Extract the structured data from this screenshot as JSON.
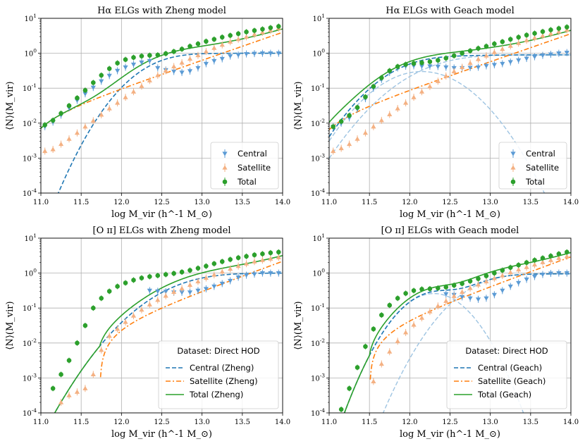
{
  "chart_data": [
    {
      "type": "line",
      "title": "Hα ELGs with Zheng model",
      "xlabel": "log M_vir (h^-1 M_⊙)",
      "ylabel": "⟨N⟩(M_vir)",
      "xlim": [
        11.0,
        14.0
      ],
      "ylim_log10": [
        -4,
        1
      ],
      "xticks": [
        "11.0",
        "11.5",
        "12.0",
        "12.5",
        "13.0",
        "13.5",
        "14.0"
      ],
      "yticks": [
        "10^-4",
        "10^-3",
        "10^-2",
        "10^-1",
        "10^0",
        "10^1"
      ],
      "grid": true,
      "legend_loc": "lower right",
      "legend_title": "",
      "legend": [
        {
          "label": "Central",
          "marker": "tri-down",
          "color": "#5b9bd5"
        },
        {
          "label": "Satellite",
          "marker": "tri-up",
          "color": "#f4b183"
        },
        {
          "label": "Total",
          "marker": "circle",
          "color": "#2ca02c"
        }
      ],
      "model": {
        "central": {
          "kind": "zheng",
          "logMmin": 12.4,
          "sigma": 0.45,
          "amp": 1.0
        },
        "satellite": {
          "M0": 10.8,
          "M1": 13.25,
          "alpha": 0.8
        },
        "curves": [
          "central-dashed",
          "satellite-dashdot",
          "total-solid"
        ]
      },
      "series": [
        {
          "name": "Central",
          "x": [
            11.05,
            11.15,
            11.25,
            11.35,
            11.45,
            11.55,
            11.65,
            11.75,
            11.85,
            11.95,
            12.05,
            12.15,
            12.25,
            12.35,
            12.45,
            12.55,
            12.65,
            12.75,
            12.85,
            12.95,
            13.05,
            13.15,
            13.25,
            13.35,
            13.45,
            13.55,
            13.65,
            13.75,
            13.85,
            13.95
          ],
          "log10y": [
            -2.1,
            -1.97,
            -1.77,
            -1.56,
            -1.35,
            -1.16,
            -0.98,
            -0.8,
            -0.64,
            -0.5,
            -0.4,
            -0.32,
            -0.26,
            -0.22,
            -0.42,
            -0.48,
            -0.52,
            -0.55,
            -0.51,
            -0.42,
            -0.3,
            -0.22,
            -0.16,
            -0.08,
            -0.05,
            -0.02,
            -0.01,
            0.0,
            0.0,
            0.0
          ]
        },
        {
          "name": "Satellite",
          "x": [
            11.05,
            11.15,
            11.25,
            11.35,
            11.45,
            11.55,
            11.65,
            11.75,
            11.85,
            11.95,
            12.05,
            12.15,
            12.25,
            12.35,
            12.45,
            12.55,
            12.65,
            12.75,
            12.85,
            12.95,
            13.05,
            13.15,
            13.25,
            13.35,
            13.45,
            13.55,
            13.65,
            13.75,
            13.85,
            13.95
          ],
          "log10y": [
            -2.8,
            -2.75,
            -2.6,
            -2.45,
            -2.28,
            -2.1,
            -1.93,
            -1.76,
            -1.58,
            -1.42,
            -1.26,
            -1.1,
            -0.94,
            -0.78,
            -0.63,
            -0.5,
            -0.38,
            -0.27,
            -0.16,
            -0.06,
            0.05,
            0.15,
            0.24,
            0.33,
            0.4,
            0.47,
            0.54,
            0.6,
            0.66,
            0.72
          ]
        },
        {
          "name": "Total",
          "x": [
            11.05,
            11.15,
            11.25,
            11.35,
            11.45,
            11.55,
            11.65,
            11.75,
            11.85,
            11.95,
            12.05,
            12.15,
            12.25,
            12.35,
            12.45,
            12.55,
            12.65,
            12.75,
            12.85,
            12.95,
            13.05,
            13.15,
            13.25,
            13.35,
            13.45,
            13.55,
            13.65,
            13.75,
            13.85,
            13.95
          ],
          "log10y": [
            -2.05,
            -1.92,
            -1.72,
            -1.5,
            -1.28,
            -1.06,
            -0.84,
            -0.63,
            -0.44,
            -0.28,
            -0.18,
            -0.12,
            -0.08,
            -0.06,
            -0.05,
            -0.01,
            0.05,
            0.12,
            0.2,
            0.27,
            0.34,
            0.4,
            0.46,
            0.51,
            0.56,
            0.61,
            0.65,
            0.69,
            0.73,
            0.77
          ]
        }
      ]
    },
    {
      "type": "line",
      "title": "Hα ELGs with Geach model",
      "xlabel": "log M_vir (h^-1 M_⊙)",
      "ylabel": "⟨N⟩(M_vir)",
      "xlim": [
        11.0,
        14.0
      ],
      "ylim_log10": [
        -4,
        1
      ],
      "xticks": [
        "11.0",
        "11.5",
        "12.0",
        "12.5",
        "13.0",
        "13.5",
        "14.0"
      ],
      "yticks": [
        "10^-4",
        "10^-3",
        "10^-2",
        "10^-1",
        "10^0",
        "10^1"
      ],
      "grid": true,
      "legend_loc": "lower right",
      "legend_title": "",
      "legend": [
        {
          "label": "Central",
          "marker": "tri-down",
          "color": "#5b9bd5"
        },
        {
          "label": "Satellite",
          "marker": "tri-up",
          "color": "#f4b183"
        },
        {
          "label": "Total",
          "marker": "circle",
          "color": "#2ca02c"
        }
      ],
      "model": {
        "central": {
          "kind": "geach",
          "gauss_mu": 12.15,
          "gauss_sigma": 0.38,
          "gauss_amp": 0.3,
          "step_logM": 12.3,
          "step_sigma": 0.6,
          "step_amp": 0.9
        },
        "satellite": {
          "M0": 10.8,
          "M1": 13.3,
          "alpha": 0.8
        },
        "curves": [
          "central-dashed",
          "satellite-dashdot",
          "total-solid",
          "central-gaussian-light",
          "central-step-light"
        ]
      },
      "series": [
        {
          "name": "Central",
          "x": [
            11.05,
            11.15,
            11.25,
            11.35,
            11.45,
            11.55,
            11.65,
            11.75,
            11.85,
            11.95,
            12.05,
            12.15,
            12.25,
            12.35,
            12.45,
            12.55,
            12.65,
            12.75,
            12.85,
            12.95,
            13.05,
            13.15,
            13.25,
            13.35,
            13.45,
            13.55,
            13.65,
            13.75,
            13.85,
            13.95
          ],
          "log10y": [
            -2.1,
            -2.0,
            -1.85,
            -1.6,
            -1.3,
            -1.0,
            -0.75,
            -0.55,
            -0.42,
            -0.37,
            -0.36,
            -0.37,
            -0.37,
            -0.38,
            -0.4,
            -0.42,
            -0.42,
            -0.41,
            -0.4,
            -0.36,
            -0.33,
            -0.3,
            -0.25,
            -0.2,
            -0.15,
            -0.1,
            -0.06,
            -0.03,
            0.0,
            0.02
          ]
        },
        {
          "name": "Satellite",
          "x": [
            11.05,
            11.15,
            11.25,
            11.35,
            11.45,
            11.55,
            11.65,
            11.75,
            11.85,
            11.95,
            12.05,
            12.15,
            12.25,
            12.35,
            12.45,
            12.55,
            12.65,
            12.75,
            12.85,
            12.95,
            13.05,
            13.15,
            13.25,
            13.35,
            13.45,
            13.55,
            13.65,
            13.75,
            13.85,
            13.95
          ],
          "log10y": [
            -2.8,
            -2.72,
            -2.6,
            -2.45,
            -2.28,
            -2.1,
            -1.92,
            -1.75,
            -1.58,
            -1.42,
            -1.26,
            -1.1,
            -0.95,
            -0.8,
            -0.65,
            -0.52,
            -0.4,
            -0.28,
            -0.17,
            -0.07,
            0.03,
            0.12,
            0.21,
            0.29,
            0.37,
            0.44,
            0.5,
            0.56,
            0.62,
            0.67
          ]
        },
        {
          "name": "Total",
          "x": [
            11.05,
            11.15,
            11.25,
            11.35,
            11.45,
            11.55,
            11.65,
            11.75,
            11.85,
            11.95,
            12.05,
            12.15,
            12.25,
            12.35,
            12.45,
            12.55,
            12.65,
            12.75,
            12.85,
            12.95,
            13.05,
            13.15,
            13.25,
            13.35,
            13.45,
            13.55,
            13.65,
            13.75,
            13.85,
            13.95
          ],
          "log10y": [
            -2.1,
            -1.95,
            -1.78,
            -1.55,
            -1.25,
            -0.95,
            -0.7,
            -0.5,
            -0.38,
            -0.32,
            -0.29,
            -0.27,
            -0.24,
            -0.2,
            -0.14,
            -0.07,
            0.0,
            0.07,
            0.14,
            0.2,
            0.27,
            0.33,
            0.4,
            0.46,
            0.52,
            0.57,
            0.62,
            0.67,
            0.71,
            0.75
          ]
        }
      ]
    },
    {
      "type": "line",
      "title": "[O ɪɪ] ELGs with Zheng model",
      "xlabel": "log M_vir (h^-1 M_⊙)",
      "ylabel": "⟨N⟩(M_vir)",
      "xlim": [
        11.0,
        14.0
      ],
      "ylim_log10": [
        -4,
        1
      ],
      "xticks": [
        "11.0",
        "11.5",
        "12.0",
        "12.5",
        "13.0",
        "13.5",
        "14.0"
      ],
      "yticks": [
        "10^-4",
        "10^-3",
        "10^-2",
        "10^-1",
        "10^0",
        "10^1"
      ],
      "grid": true,
      "legend_loc": "lower right",
      "legend_title": "Dataset: Direct HOD",
      "legend": [
        {
          "label": "Central (Zheng)",
          "marker": "dashed",
          "color": "#1f77b4"
        },
        {
          "label": "Satellite (Zheng)",
          "marker": "dashdot",
          "color": "#ff7f0e"
        },
        {
          "label": "Total (Zheng)",
          "marker": "solid",
          "color": "#2ca02c"
        }
      ],
      "model": {
        "central": {
          "kind": "zheng",
          "logMmin": 12.75,
          "sigma": 0.6,
          "amp": 1.0
        },
        "satellite": {
          "M0": 11.73,
          "M1": 13.6,
          "alpha": 0.85
        },
        "curves": [
          "central-dashed",
          "satellite-dashdot",
          "total-solid"
        ]
      },
      "series": [
        {
          "name": "Central",
          "x": [
            12.35,
            12.45,
            12.55,
            12.65,
            12.75,
            12.85,
            12.95,
            13.05,
            13.15,
            13.25,
            13.35,
            13.45,
            13.55,
            13.65,
            13.75,
            13.85,
            13.95
          ],
          "log10y": [
            -0.5,
            -0.52,
            -0.53,
            -0.55,
            -0.55,
            -0.55,
            -0.5,
            -0.45,
            -0.38,
            -0.3,
            -0.22,
            -0.12,
            -0.06,
            -0.03,
            0.0,
            0.0,
            0.0
          ]
        },
        {
          "name": "Satellite",
          "x": [
            11.25,
            11.35,
            11.45,
            11.55,
            11.65,
            11.75,
            11.85,
            11.95,
            12.05,
            12.15,
            12.25,
            12.35,
            12.45,
            12.55,
            12.65,
            12.75,
            12.85,
            12.95,
            13.05,
            13.15,
            13.25,
            13.35,
            13.45,
            13.55,
            13.65,
            13.75,
            13.85,
            13.95
          ],
          "log10y": [
            -3.7,
            -3.5,
            -3.4,
            -3.3,
            -2.9,
            -2.2,
            -1.8,
            -1.6,
            -1.4,
            -1.22,
            -1.05,
            -0.9,
            -0.77,
            -0.65,
            -0.54,
            -0.44,
            -0.34,
            -0.24,
            -0.14,
            -0.05,
            0.04,
            0.12,
            0.2,
            0.27,
            0.33,
            0.37,
            0.41,
            0.45
          ]
        },
        {
          "name": "Total",
          "x": [
            11.15,
            11.25,
            11.35,
            11.45,
            11.55,
            11.65,
            11.75,
            11.85,
            11.95,
            12.05,
            12.15,
            12.25,
            12.35,
            12.45,
            12.55,
            12.65,
            12.75,
            12.85,
            12.95,
            13.05,
            13.15,
            13.25,
            13.35,
            13.45,
            13.55,
            13.65,
            13.75,
            13.85,
            13.95
          ],
          "log10y": [
            -3.3,
            -2.9,
            -2.5,
            -2.0,
            -1.5,
            -1.0,
            -0.72,
            -0.52,
            -0.38,
            -0.28,
            -0.2,
            -0.14,
            -0.1,
            -0.07,
            -0.04,
            -0.01,
            0.03,
            0.08,
            0.14,
            0.2,
            0.27,
            0.33,
            0.39,
            0.44,
            0.48,
            0.52,
            0.55,
            0.58,
            0.6
          ]
        }
      ]
    },
    {
      "type": "line",
      "title": "[O ɪɪ] ELGs with Geach model",
      "xlabel": "log M_vir (h^-1 M_⊙)",
      "ylabel": "⟨N⟩(M_vir)",
      "xlim": [
        11.0,
        14.0
      ],
      "ylim_log10": [
        -4,
        1
      ],
      "xticks": [
        "11.0",
        "11.5",
        "12.0",
        "12.5",
        "13.0",
        "13.5",
        "14.0"
      ],
      "yticks": [
        "10^-4",
        "10^-3",
        "10^-2",
        "10^-1",
        "10^0",
        "10^1"
      ],
      "grid": true,
      "legend_loc": "lower right",
      "legend_title": "Dataset: Direct HOD",
      "legend": [
        {
          "label": "Central (Geach)",
          "marker": "dashed",
          "color": "#1f77b4"
        },
        {
          "label": "Satellite (Geach)",
          "marker": "dashdot",
          "color": "#ff7f0e"
        },
        {
          "label": "Total (Geach)",
          "marker": "solid",
          "color": "#2ca02c"
        }
      ],
      "model": {
        "central": {
          "kind": "geach",
          "gauss_mu": 12.3,
          "gauss_sigma": 0.28,
          "gauss_amp": 0.26,
          "step_logM": 12.85,
          "step_sigma": 0.45,
          "step_amp": 0.95
        },
        "satellite": {
          "M0": 11.5,
          "M1": 13.45,
          "alpha": 0.85
        },
        "curves": [
          "central-dashed",
          "satellite-dashdot",
          "total-solid",
          "central-gaussian-light",
          "central-step-light"
        ]
      },
      "series": [
        {
          "name": "Central",
          "x": [
            12.45,
            12.55,
            12.65,
            12.75,
            12.85,
            12.95,
            13.05,
            13.15,
            13.25,
            13.35,
            13.45,
            13.55,
            13.65,
            13.75,
            13.85,
            13.95
          ],
          "log10y": [
            -0.6,
            -0.62,
            -0.68,
            -0.72,
            -0.75,
            -0.72,
            -0.62,
            -0.5,
            -0.38,
            -0.28,
            -0.18,
            -0.1,
            -0.04,
            -0.01,
            0.0,
            0.0
          ]
        },
        {
          "name": "Satellite",
          "x": [
            11.55,
            11.65,
            11.75,
            11.85,
            11.95,
            12.05,
            12.15,
            12.25,
            12.35,
            12.45,
            12.55,
            12.65,
            12.75,
            12.85,
            12.95,
            13.05,
            13.15,
            13.25,
            13.35,
            13.45,
            13.55,
            13.65,
            13.75,
            13.85,
            13.95
          ],
          "log10y": [
            -3.1,
            -2.6,
            -2.25,
            -1.95,
            -1.7,
            -1.48,
            -1.28,
            -1.1,
            -0.94,
            -0.8,
            -0.66,
            -0.54,
            -0.43,
            -0.33,
            -0.24,
            -0.15,
            -0.07,
            0.02,
            0.1,
            0.17,
            0.24,
            0.31,
            0.37,
            0.43,
            0.48
          ]
        },
        {
          "name": "Total",
          "x": [
            11.15,
            11.25,
            11.35,
            11.45,
            11.55,
            11.65,
            11.75,
            11.85,
            11.95,
            12.05,
            12.15,
            12.25,
            12.35,
            12.45,
            12.55,
            12.65,
            12.75,
            12.85,
            12.95,
            13.05,
            13.15,
            13.25,
            13.35,
            13.45,
            13.55,
            13.65,
            13.75,
            13.85,
            13.95
          ],
          "log10y": [
            -3.9,
            -3.3,
            -2.7,
            -2.1,
            -1.6,
            -1.2,
            -0.92,
            -0.72,
            -0.58,
            -0.5,
            -0.46,
            -0.45,
            -0.43,
            -0.4,
            -0.35,
            -0.3,
            -0.23,
            -0.16,
            -0.08,
            0.0,
            0.08,
            0.16,
            0.23,
            0.3,
            0.37,
            0.43,
            0.49,
            0.55,
            0.6
          ]
        }
      ]
    }
  ]
}
